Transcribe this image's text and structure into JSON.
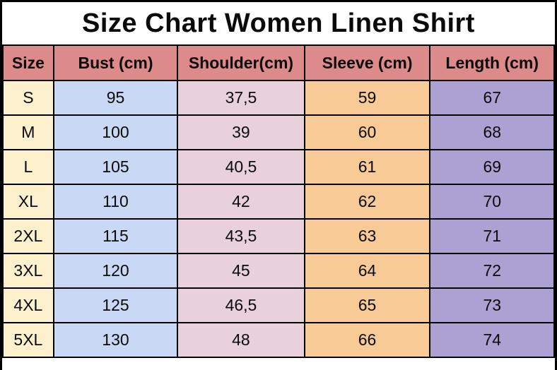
{
  "title": "Size Chart Women Linen Shirt",
  "chart_data": {
    "type": "table",
    "title": "Size Chart Women Linen Shirt",
    "columns": [
      "Size",
      "Bust (cm)",
      "Shoulder(cm)",
      "Sleeve (cm)",
      "Length (cm)"
    ],
    "rows": [
      [
        "S",
        "95",
        "37,5",
        "59",
        "67"
      ],
      [
        "M",
        "100",
        "39",
        "60",
        "68"
      ],
      [
        "L",
        "105",
        "40,5",
        "61",
        "69"
      ],
      [
        "XL",
        "110",
        "42",
        "62",
        "70"
      ],
      [
        "2XL",
        "115",
        "43,5",
        "63",
        "71"
      ],
      [
        "3XL",
        "120",
        "45",
        "64",
        "72"
      ],
      [
        "4XL",
        "125",
        "46,5",
        "65",
        "73"
      ],
      [
        "5XL",
        "130",
        "48",
        "66",
        "74"
      ]
    ]
  },
  "colors": {
    "header_bg": "#dd8a8a",
    "size_col_bg": "#fdf0cd",
    "bust_col_bg": "#c8d8f5",
    "shoulder_col_bg": "#e8d0dc",
    "sleeve_col_bg": "#f7ca96",
    "length_col_bg": "#ada0d2",
    "border": "#000000"
  }
}
